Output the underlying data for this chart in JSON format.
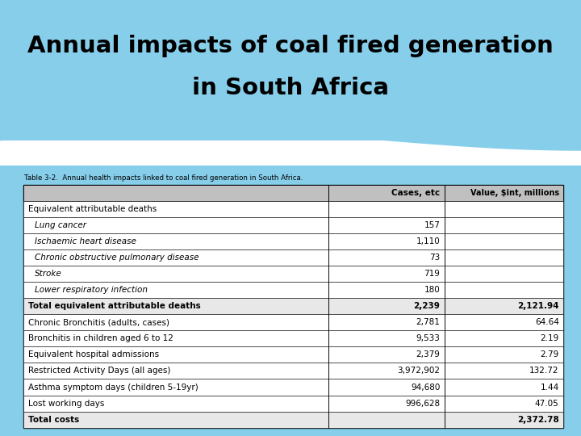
{
  "title_line1": "Annual impacts of coal fired generation",
  "title_line2": "in South Africa",
  "subtitle": "Table 3-2.  Annual health impacts linked to coal fired generation in South Africa.",
  "col_headers": [
    "",
    "Cases, etc",
    "Value, $int, millions"
  ],
  "rows": [
    {
      "label": "Equivalent attributable deaths",
      "cases": "",
      "value": "",
      "bold": false,
      "italic": false,
      "indent": false
    },
    {
      "label": "Lung cancer",
      "cases": "157",
      "value": "",
      "bold": false,
      "italic": true,
      "indent": true
    },
    {
      "label": "Ischaemic heart disease",
      "cases": "1,110",
      "value": "",
      "bold": false,
      "italic": true,
      "indent": true
    },
    {
      "label": "Chronic obstructive pulmonary disease",
      "cases": "73",
      "value": "",
      "bold": false,
      "italic": true,
      "indent": true
    },
    {
      "label": "Stroke",
      "cases": "719",
      "value": "",
      "bold": false,
      "italic": true,
      "indent": true
    },
    {
      "label": "Lower respiratory infection",
      "cases": "180",
      "value": "",
      "bold": false,
      "italic": true,
      "indent": true
    },
    {
      "label": "Total equivalent attributable deaths",
      "cases": "2,239",
      "value": "2,121.94",
      "bold": true,
      "italic": false,
      "indent": false
    },
    {
      "label": "Chronic Bronchitis (adults, cases)",
      "cases": "2,781",
      "value": "64.64",
      "bold": false,
      "italic": false,
      "indent": false
    },
    {
      "label": "Bronchitis in children aged 6 to 12",
      "cases": "9,533",
      "value": "2.19",
      "bold": false,
      "italic": false,
      "indent": false
    },
    {
      "label": "Equivalent hospital admissions",
      "cases": "2,379",
      "value": "2.79",
      "bold": false,
      "italic": false,
      "indent": false
    },
    {
      "label": "Restricted Activity Days (all ages)",
      "cases": "3,972,902",
      "value": "132.72",
      "bold": false,
      "italic": false,
      "indent": false
    },
    {
      "label": "Asthma symptom days (children 5-19yr)",
      "cases": "94,680",
      "value": "1.44",
      "bold": false,
      "italic": false,
      "indent": false
    },
    {
      "label": "Lost working days",
      "cases": "996,628",
      "value": "47.05",
      "bold": false,
      "italic": false,
      "indent": false
    },
    {
      "label": "Total costs",
      "cases": "",
      "value": "2,372.78",
      "bold": true,
      "italic": false,
      "indent": false
    }
  ],
  "bg_color": "#87CEEB",
  "table_bg": "#ffffff",
  "header_bg": "#c0c0c0",
  "bold_row_bg": "#e8e8e8",
  "title_color": "#000000",
  "subtitle_color": "#000000"
}
